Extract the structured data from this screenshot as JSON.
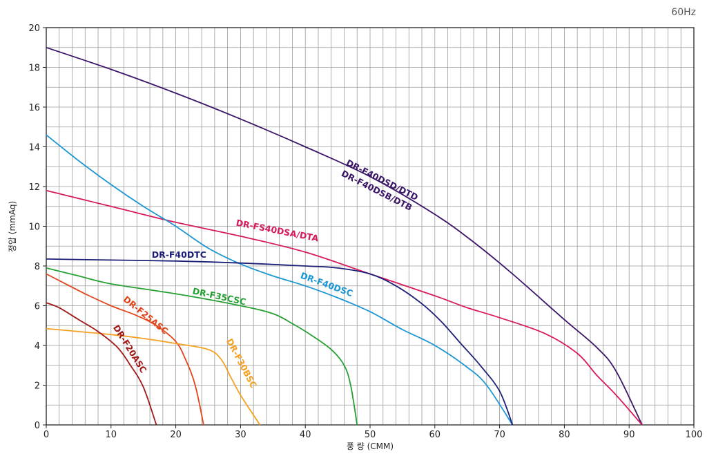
{
  "frequency_label": "60Hz",
  "chart_data": {
    "type": "line",
    "title": "",
    "xlabel": "풍 량 (CMM)",
    "ylabel": "정압 (mmAq)",
    "xlim": [
      0,
      100
    ],
    "ylim": [
      0,
      20
    ],
    "x_ticks": [
      0,
      10,
      20,
      30,
      40,
      50,
      60,
      70,
      80,
      90,
      100
    ],
    "y_ticks": [
      0,
      2,
      4,
      6,
      8,
      10,
      12,
      14,
      16,
      18,
      20
    ],
    "grid": true,
    "series": [
      {
        "name": "DR-F40DSD/DTD",
        "label2": "DR-F40DSB/DTB",
        "color": "#3a1568",
        "points": [
          [
            0,
            19.0
          ],
          [
            10,
            17.9
          ],
          [
            20,
            16.7
          ],
          [
            30,
            15.4
          ],
          [
            40,
            14.0
          ],
          [
            50,
            12.5
          ],
          [
            60,
            10.6
          ],
          [
            66,
            9.2
          ],
          [
            72,
            7.6
          ],
          [
            80,
            5.3
          ],
          [
            85,
            3.9
          ],
          [
            88,
            2.7
          ],
          [
            92,
            0
          ]
        ]
      },
      {
        "name": "DR-FS40DSA/DTA",
        "color": "#d8195e",
        "points": [
          [
            0,
            11.8
          ],
          [
            10,
            11.0
          ],
          [
            20,
            10.2
          ],
          [
            30,
            9.5
          ],
          [
            40,
            8.7
          ],
          [
            50,
            7.6
          ],
          [
            60,
            6.5
          ],
          [
            65,
            5.9
          ],
          [
            70,
            5.4
          ],
          [
            77,
            4.6
          ],
          [
            82,
            3.6
          ],
          [
            85,
            2.5
          ],
          [
            88,
            1.5
          ],
          [
            92,
            0
          ]
        ]
      },
      {
        "name": "DR-F40DSC",
        "color": "#1a96d4",
        "points": [
          [
            0,
            14.6
          ],
          [
            5,
            13.3
          ],
          [
            10,
            12.1
          ],
          [
            15,
            11.0
          ],
          [
            20,
            10.0
          ],
          [
            25,
            8.9
          ],
          [
            30,
            8.1
          ],
          [
            35,
            7.5
          ],
          [
            40,
            7.0
          ],
          [
            45,
            6.4
          ],
          [
            50,
            5.7
          ],
          [
            55,
            4.8
          ],
          [
            60,
            4.0
          ],
          [
            65,
            2.9
          ],
          [
            68,
            2.0
          ],
          [
            72,
            0
          ]
        ]
      },
      {
        "name": "DR-F40DTC",
        "color": "#1b1f78",
        "points": [
          [
            0,
            8.35
          ],
          [
            10,
            8.3
          ],
          [
            20,
            8.25
          ],
          [
            30,
            8.15
          ],
          [
            40,
            8.0
          ],
          [
            45,
            7.9
          ],
          [
            50,
            7.6
          ],
          [
            54,
            7.0
          ],
          [
            58,
            6.1
          ],
          [
            61,
            5.2
          ],
          [
            64,
            4.1
          ],
          [
            67,
            3.0
          ],
          [
            70,
            1.7
          ],
          [
            72,
            0
          ]
        ]
      },
      {
        "name": "DR-F35CSC",
        "color": "#26a032",
        "points": [
          [
            0,
            7.9
          ],
          [
            5,
            7.5
          ],
          [
            10,
            7.1
          ],
          [
            20,
            6.6
          ],
          [
            30,
            6.0
          ],
          [
            35,
            5.6
          ],
          [
            38,
            5.1
          ],
          [
            41,
            4.5
          ],
          [
            44,
            3.8
          ],
          [
            46,
            3.0
          ],
          [
            47,
            2.0
          ],
          [
            48,
            0
          ]
        ]
      },
      {
        "name": "DR-F25ASC",
        "color": "#e2441a",
        "points": [
          [
            0,
            7.6
          ],
          [
            3,
            7.1
          ],
          [
            6,
            6.6
          ],
          [
            10,
            6.0
          ],
          [
            14,
            5.5
          ],
          [
            17,
            5.0
          ],
          [
            20,
            4.2
          ],
          [
            21.5,
            3.3
          ],
          [
            23,
            2.0
          ],
          [
            24.3,
            0
          ]
        ]
      },
      {
        "name": "DR-F30BSC",
        "color": "#f5a020",
        "points": [
          [
            0,
            4.85
          ],
          [
            5,
            4.7
          ],
          [
            10,
            4.55
          ],
          [
            15,
            4.35
          ],
          [
            20,
            4.1
          ],
          [
            25,
            3.8
          ],
          [
            27,
            3.3
          ],
          [
            28.5,
            2.4
          ],
          [
            30,
            1.5
          ],
          [
            33,
            0
          ]
        ]
      },
      {
        "name": "DR-F20ASC",
        "color": "#a01818",
        "points": [
          [
            0,
            6.15
          ],
          [
            2,
            5.9
          ],
          [
            5,
            5.3
          ],
          [
            8,
            4.7
          ],
          [
            11,
            3.9
          ],
          [
            13,
            3.0
          ],
          [
            15,
            1.9
          ],
          [
            17,
            0
          ]
        ]
      }
    ]
  }
}
